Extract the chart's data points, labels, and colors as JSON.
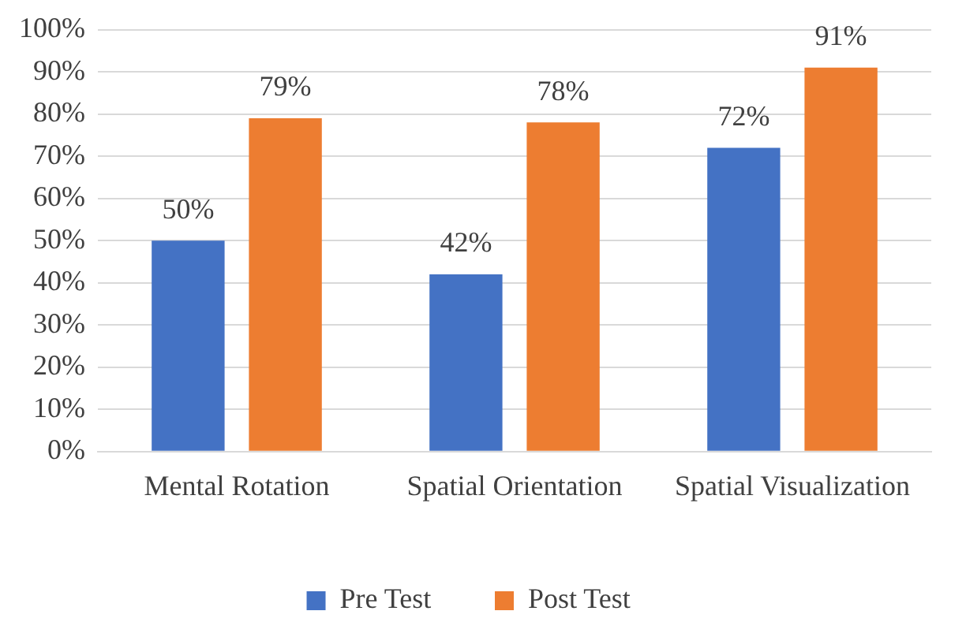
{
  "chart_data": {
    "type": "bar",
    "categories": [
      "Mental Rotation",
      "Spatial Orientation",
      "Spatial Visualization"
    ],
    "series": [
      {
        "name": "Pre Test",
        "color": "#4472c4",
        "values": [
          50,
          42,
          72
        ],
        "value_labels": [
          "50%",
          "42%",
          "72%"
        ]
      },
      {
        "name": "Post Test",
        "color": "#ed7d31",
        "values": [
          79,
          78,
          91
        ],
        "value_labels": [
          "79%",
          "78%",
          "91%"
        ]
      }
    ],
    "ylim": [
      0,
      100
    ],
    "yticks": [
      {
        "value": 0,
        "label": "0%"
      },
      {
        "value": 10,
        "label": "10%"
      },
      {
        "value": 20,
        "label": "20%"
      },
      {
        "value": 30,
        "label": "30%"
      },
      {
        "value": 40,
        "label": "40%"
      },
      {
        "value": 50,
        "label": "50%"
      },
      {
        "value": 60,
        "label": "60%"
      },
      {
        "value": 70,
        "label": "70%"
      },
      {
        "value": 80,
        "label": "80%"
      },
      {
        "value": 90,
        "label": "90%"
      },
      {
        "value": 100,
        "label": "100%"
      }
    ],
    "grid": "y",
    "legend": "bottom"
  }
}
